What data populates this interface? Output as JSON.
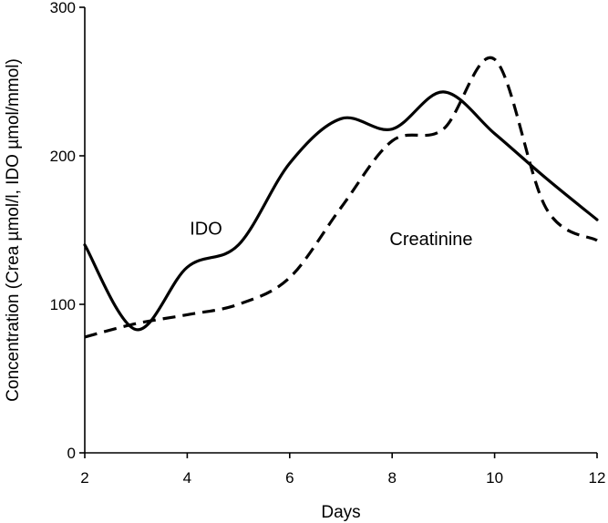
{
  "chart_data": {
    "type": "line",
    "xlabel": "Days",
    "ylabel": "Concentration (Crea µmol/l, IDO µmol/mmol)",
    "xlim": [
      2,
      12
    ],
    "ylim": [
      0,
      300
    ],
    "x_ticks": [
      "2",
      "4",
      "6",
      "8",
      "10",
      "12"
    ],
    "y_ticks": [
      "0",
      "100",
      "200",
      "300"
    ],
    "grid": false,
    "series": [
      {
        "name": "IDO",
        "style": "solid",
        "x": [
          2,
          3,
          4,
          5,
          6,
          7,
          8,
          9,
          10,
          11,
          12
        ],
        "y": [
          140,
          83,
          125,
          140,
          195,
          225,
          218,
          243,
          215,
          185,
          157
        ]
      },
      {
        "name": "Creatinine",
        "style": "dashed",
        "x": [
          2,
          3,
          4,
          5,
          6,
          7,
          8,
          9,
          10,
          11,
          12
        ],
        "y": [
          78,
          87,
          93,
          100,
          118,
          165,
          210,
          218,
          265,
          165,
          143
        ]
      }
    ]
  }
}
